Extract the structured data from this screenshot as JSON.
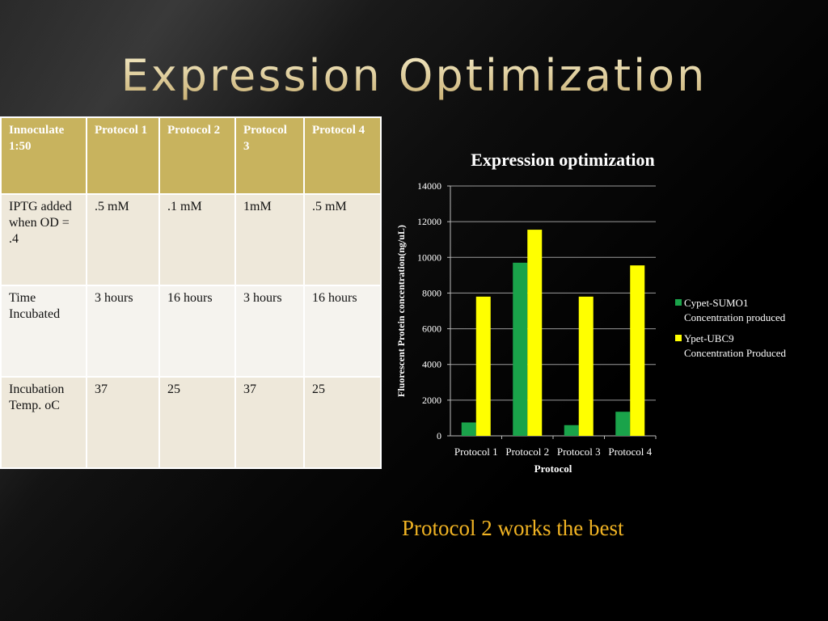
{
  "slide": {
    "title": "Expression Optimization",
    "footnote": "Protocol 2 works the best",
    "accent_title_color": "#e8d9a8",
    "footnote_color": "#f0b323"
  },
  "table": {
    "headers": [
      "Innoculate 1:50",
      "Protocol 1",
      "Protocol 2",
      "Protocol 3",
      "Protocol 4"
    ],
    "rows": [
      [
        "IPTG added when OD = .4",
        ".5 mM",
        ".1 mM",
        "1mM",
        ".5 mM"
      ],
      [
        "Time Incubated",
        "3 hours",
        "16 hours",
        "3 hours",
        "16 hours"
      ],
      [
        "Incubation Temp. oC",
        "37",
        "25",
        "37",
        "25"
      ]
    ],
    "header_color": "#c8b35e"
  },
  "chart_data": {
    "type": "bar",
    "title": "Expression optimization",
    "xlabel": "Protocol",
    "ylabel": "Fluorescent Protein concentration(ng/uL)",
    "categories": [
      "Protocol 1",
      "Protocol 2",
      "Protocol 3",
      "Protocol 4"
    ],
    "series": [
      {
        "name": "Cypet-SUMO1 Concentration produced",
        "values": [
          750,
          9700,
          600,
          1350
        ],
        "color": "#1aa34a"
      },
      {
        "name": "Ypet-UBC9 Concentration Produced",
        "values": [
          7800,
          11550,
          7800,
          9550
        ],
        "color": "#ffff00"
      }
    ],
    "ylim": [
      0,
      14000
    ],
    "yticks": [
      0,
      2000,
      4000,
      6000,
      8000,
      10000,
      12000,
      14000
    ],
    "grid": true,
    "legend": "right"
  }
}
